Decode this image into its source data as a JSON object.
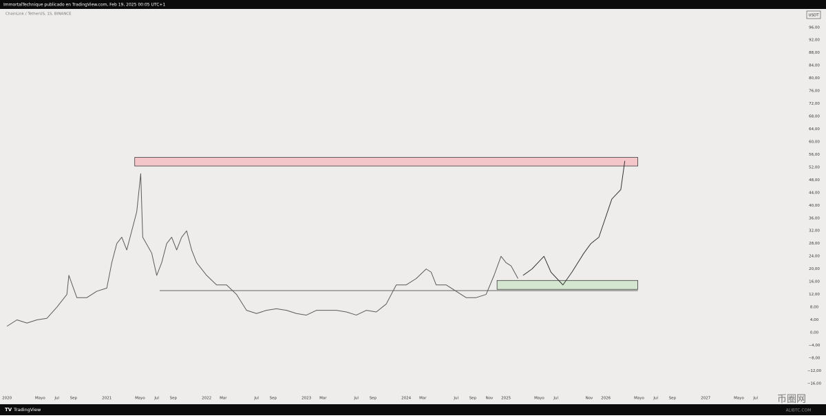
{
  "chart_data": {
    "type": "line",
    "header": "ImmortalTechnique publicado en TradingView.com, Feb 19, 2025 00:05 UTC+1",
    "symbol": "ChainLink / TetherUS, 1S, BINANCE",
    "currency": "USDT",
    "brand": "TradingView",
    "watermark": "币圈网",
    "watermark_sub": "ALIBTC.COM",
    "xlim": [
      2019.93,
      2027.985
    ],
    "ylim": [
      -19.5,
      101.8
    ],
    "grid": false,
    "xticks": [
      {
        "value": 2020.0,
        "label": "2020"
      },
      {
        "value": 2020.333,
        "label": "Mayo"
      },
      {
        "value": 2020.5,
        "label": "Jul"
      },
      {
        "value": 2020.667,
        "label": "Sep"
      },
      {
        "value": 2021.0,
        "label": "2021"
      },
      {
        "value": 2021.333,
        "label": "Mayo"
      },
      {
        "value": 2021.5,
        "label": "Jul"
      },
      {
        "value": 2021.667,
        "label": "Sep"
      },
      {
        "value": 2022.0,
        "label": "2022"
      },
      {
        "value": 2022.167,
        "label": "Mar"
      },
      {
        "value": 2022.5,
        "label": "Jul"
      },
      {
        "value": 2022.667,
        "label": "Sep"
      },
      {
        "value": 2023.0,
        "label": "2023"
      },
      {
        "value": 2023.167,
        "label": "Mar"
      },
      {
        "value": 2023.5,
        "label": "Jul"
      },
      {
        "value": 2023.667,
        "label": "Sep"
      },
      {
        "value": 2024.0,
        "label": "2024"
      },
      {
        "value": 2024.167,
        "label": "Mar"
      },
      {
        "value": 2024.5,
        "label": "Jul"
      },
      {
        "value": 2024.667,
        "label": "Sep"
      },
      {
        "value": 2024.833,
        "label": "Nov"
      },
      {
        "value": 2025.0,
        "label": "2025"
      },
      {
        "value": 2025.333,
        "label": "Mayo"
      },
      {
        "value": 2025.5,
        "label": "Jul"
      },
      {
        "value": 2025.833,
        "label": "Nov"
      },
      {
        "value": 2026.0,
        "label": "2026"
      },
      {
        "value": 2026.333,
        "label": "Mayo"
      },
      {
        "value": 2026.5,
        "label": "Jul"
      },
      {
        "value": 2026.667,
        "label": "Sep"
      },
      {
        "value": 2027.0,
        "label": "2027"
      },
      {
        "value": 2027.333,
        "label": "Mayo"
      },
      {
        "value": 2027.5,
        "label": "Jul"
      }
    ],
    "yticks": [
      {
        "value": 96,
        "label": "96,00"
      },
      {
        "value": 92,
        "label": "92,00"
      },
      {
        "value": 88,
        "label": "88,00"
      },
      {
        "value": 84,
        "label": "84,00"
      },
      {
        "value": 80,
        "label": "80,00"
      },
      {
        "value": 76,
        "label": "76,00"
      },
      {
        "value": 72,
        "label": "72,00"
      },
      {
        "value": 68,
        "label": "68,00"
      },
      {
        "value": 64,
        "label": "64,00"
      },
      {
        "value": 60,
        "label": "60,00"
      },
      {
        "value": 56,
        "label": "56,00"
      },
      {
        "value": 52,
        "label": "52,00"
      },
      {
        "value": 48,
        "label": "48,00"
      },
      {
        "value": 44,
        "label": "44,00"
      },
      {
        "value": 40,
        "label": "40,00"
      },
      {
        "value": 36,
        "label": "36,00"
      },
      {
        "value": 32,
        "label": "32,00"
      },
      {
        "value": 28,
        "label": "28,00"
      },
      {
        "value": 24,
        "label": "24,00"
      },
      {
        "value": 20,
        "label": "20,00"
      },
      {
        "value": 16,
        "label": "16,00"
      },
      {
        "value": 12,
        "label": "12,00"
      },
      {
        "value": 8,
        "label": "8,00"
      },
      {
        "value": 4,
        "label": "4,00"
      },
      {
        "value": 0,
        "label": "0,00"
      },
      {
        "value": -4,
        "label": "−4,00"
      },
      {
        "value": -8,
        "label": "−8,00"
      },
      {
        "value": -12,
        "label": "−12,00"
      },
      {
        "value": -16,
        "label": "−16,00"
      }
    ],
    "series": [
      {
        "color": "#5a5a5a",
        "x": [
          2020.0,
          2020.1,
          2020.2,
          2020.3,
          2020.4,
          2020.5,
          2020.6,
          2020.62,
          2020.7,
          2020.8,
          2020.9,
          2021.0,
          2021.05,
          2021.1,
          2021.15,
          2021.2,
          2021.25,
          2021.3,
          2021.34,
          2021.36,
          2021.45,
          2021.5,
          2021.55,
          2021.6,
          2021.65,
          2021.7,
          2021.75,
          2021.8,
          2021.85,
          2021.9,
          2022.0,
          2022.1,
          2022.2,
          2022.3,
          2022.4,
          2022.5,
          2022.6,
          2022.7,
          2022.8,
          2022.9,
          2023.0,
          2023.1,
          2023.2,
          2023.3,
          2023.4,
          2023.5,
          2023.6,
          2023.7,
          2023.8,
          2023.9,
          2024.0,
          2024.1,
          2024.2,
          2024.25,
          2024.3,
          2024.4,
          2024.5,
          2024.6,
          2024.7,
          2024.8,
          2024.88,
          2024.95,
          2025.0,
          2025.05,
          2025.12
        ],
        "values": [
          2,
          4,
          3,
          4,
          4.5,
          8,
          12,
          18,
          11,
          11,
          13,
          14,
          22,
          28,
          30,
          26,
          32,
          38,
          50,
          30,
          25,
          18,
          22,
          28,
          30,
          26,
          30,
          32,
          26,
          22,
          18,
          15,
          15,
          12,
          7,
          6,
          7,
          7.5,
          7,
          6,
          5.5,
          7,
          7,
          7,
          6.5,
          5.5,
          7,
          6.5,
          9,
          15,
          15,
          17,
          20,
          19,
          15,
          15,
          13,
          11,
          11,
          12,
          18,
          24,
          22,
          21,
          17
        ]
      },
      {
        "color": "#333333",
        "x": [
          2025.17,
          2025.26,
          2025.38,
          2025.45,
          2025.57,
          2025.66,
          2025.78,
          2025.85,
          2025.93,
          2026.06,
          2026.15,
          2026.19
        ],
        "values": [
          18,
          20,
          24,
          19,
          15,
          19,
          25,
          28,
          30,
          42,
          45,
          54
        ]
      }
    ],
    "zones": [
      {
        "color": "#f4c6c9",
        "xlim": [
          2021.28,
          2026.32
        ],
        "ylim": [
          52.4,
          55.1
        ]
      },
      {
        "color": "#d4e6cf",
        "xlim": [
          2024.91,
          2026.32
        ],
        "ylim": [
          13.6,
          16.4
        ]
      }
    ],
    "levels": [
      {
        "value": 13.2,
        "x": [
          2021.53,
          2026.32
        ]
      }
    ]
  }
}
